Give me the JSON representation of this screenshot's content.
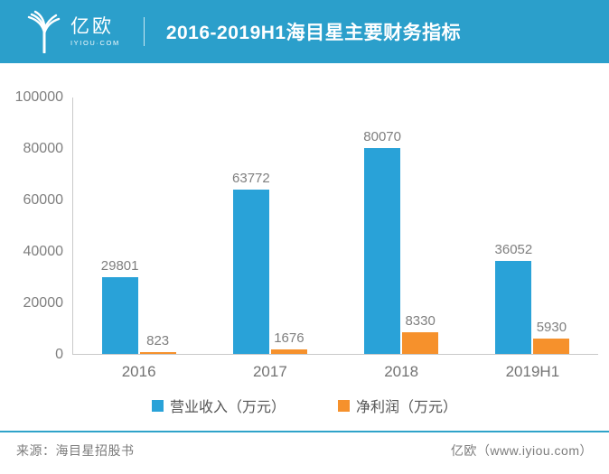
{
  "header": {
    "logo": {
      "brand": "亿欧",
      "domain": "IYIOU·COM"
    },
    "title": "2016-2019H1海目星主要财务指标"
  },
  "colors": {
    "header_bg": "#2B9FCB",
    "revenue_bar": "#29A2D8",
    "profit_bar": "#F6912C",
    "axis_line": "#C9C9C9",
    "tick_text": "#7F7F7F",
    "footer_rule": "#2FA3C9"
  },
  "chart_data": {
    "type": "bar",
    "title": "2016-2019H1海目星主要财务指标",
    "categories": [
      "2016",
      "2017",
      "2018",
      "2019H1"
    ],
    "series": [
      {
        "name": "营业收入（万元）",
        "color": "#29A2D8",
        "values": [
          29801,
          63772,
          80070,
          36052
        ]
      },
      {
        "name": "净利润（万元）",
        "color": "#F6912C",
        "values": [
          823,
          1676,
          8330,
          5930
        ]
      }
    ],
    "xlabel": "",
    "ylabel": "",
    "ylim": [
      0,
      100000
    ],
    "yticks": [
      0,
      20000,
      40000,
      60000,
      80000,
      100000
    ],
    "grid": false,
    "legend_position": "bottom"
  },
  "footer": {
    "source": "来源：海目星招股书",
    "credit": "亿欧（www.iyiou.com）"
  }
}
